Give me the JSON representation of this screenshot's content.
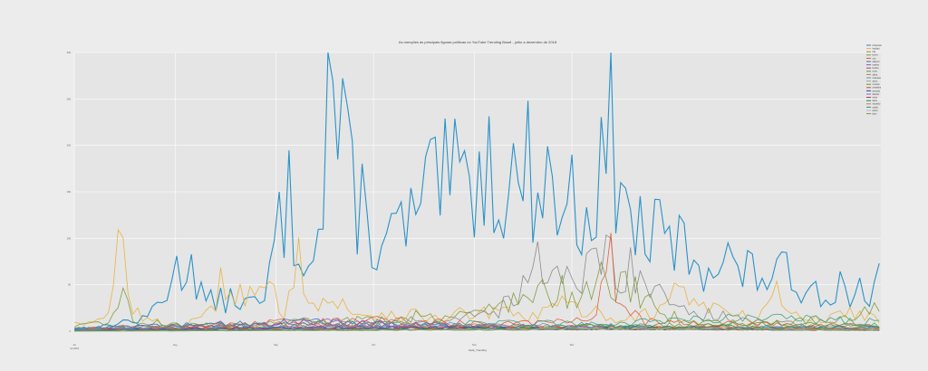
{
  "chart_data": {
    "type": "line",
    "title": "As menções às principais figuras políticas no YouTube Trending Brazil - julho a dezembro de 2018",
    "xlabel": "Data_Trending",
    "ylabel": "",
    "ylim": [
      0,
      300
    ],
    "yticks": [
      0,
      50,
      100,
      150,
      200,
      250,
      300
    ],
    "xticks": [
      {
        "date": "2018-07-01",
        "label": "Jul"
      },
      {
        "date": "2018-08-01",
        "label": "Aug"
      },
      {
        "date": "2018-09-01",
        "label": "Sep"
      },
      {
        "date": "2018-10-01",
        "label": "Oct"
      },
      {
        "date": "2018-11-01",
        "label": "Nov"
      },
      {
        "date": "2018-12-01",
        "label": "Dec"
      }
    ],
    "x_start_label": "Jul 2018",
    "grid": true,
    "legend_position": "top-right",
    "series": [
      {
        "name": "bolsonaro",
        "color": "#1f8ec6",
        "anchors": [
          [
            0,
            3
          ],
          [
            8,
            4
          ],
          [
            14,
            10
          ],
          [
            22,
            12
          ],
          [
            30,
            55
          ],
          [
            36,
            80
          ],
          [
            40,
            30
          ],
          [
            50,
            35
          ],
          [
            58,
            25
          ],
          [
            64,
            130
          ],
          [
            66,
            140
          ],
          [
            68,
            90
          ],
          [
            72,
            100
          ],
          [
            74,
            120
          ],
          [
            76,
            75
          ],
          [
            78,
            290
          ],
          [
            80,
            230
          ],
          [
            84,
            170
          ],
          [
            88,
            140
          ],
          [
            92,
            100
          ],
          [
            96,
            90
          ],
          [
            100,
            110
          ],
          [
            105,
            120
          ],
          [
            110,
            150
          ],
          [
            115,
            160
          ],
          [
            120,
            155
          ],
          [
            125,
            180
          ],
          [
            130,
            170
          ],
          [
            135,
            160
          ],
          [
            140,
            175
          ],
          [
            145,
            160
          ],
          [
            150,
            140
          ],
          [
            155,
            135
          ],
          [
            160,
            140
          ],
          [
            163,
            180
          ],
          [
            165,
            220
          ],
          [
            167,
            170
          ],
          [
            170,
            120
          ],
          [
            175,
            105
          ],
          [
            180,
            100
          ],
          [
            185,
            95
          ],
          [
            190,
            80
          ],
          [
            195,
            75
          ],
          [
            200,
            78
          ],
          [
            205,
            65
          ],
          [
            210,
            60
          ],
          [
            215,
            62
          ],
          [
            220,
            58
          ],
          [
            225,
            50
          ],
          [
            230,
            45
          ],
          [
            235,
            48
          ],
          [
            240,
            40
          ],
          [
            242,
            55
          ],
          [
            245,
            30
          ],
          [
            248,
            58
          ]
        ]
      },
      {
        "name": "haddad",
        "color": "#e8b13a",
        "anchors": [
          [
            0,
            12
          ],
          [
            5,
            8
          ],
          [
            10,
            12
          ],
          [
            14,
            90
          ],
          [
            16,
            80
          ],
          [
            18,
            30
          ],
          [
            22,
            12
          ],
          [
            30,
            6
          ],
          [
            40,
            12
          ],
          [
            46,
            55
          ],
          [
            50,
            45
          ],
          [
            55,
            35
          ],
          [
            60,
            42
          ],
          [
            65,
            20
          ],
          [
            68,
            88
          ],
          [
            70,
            75
          ],
          [
            74,
            25
          ],
          [
            80,
            35
          ],
          [
            86,
            15
          ],
          [
            90,
            20
          ],
          [
            100,
            18
          ],
          [
            110,
            15
          ],
          [
            120,
            18
          ],
          [
            130,
            20
          ],
          [
            140,
            15
          ],
          [
            150,
            28
          ],
          [
            160,
            20
          ],
          [
            170,
            12
          ],
          [
            175,
            20
          ],
          [
            180,
            22
          ],
          [
            185,
            45
          ],
          [
            190,
            35
          ],
          [
            200,
            20
          ],
          [
            210,
            12
          ],
          [
            215,
            48
          ],
          [
            220,
            18
          ],
          [
            230,
            12
          ],
          [
            240,
            22
          ],
          [
            248,
            16
          ]
        ]
      },
      {
        "name": "lula",
        "color": "#888888",
        "anchors": [
          [
            0,
            2
          ],
          [
            40,
            4
          ],
          [
            80,
            6
          ],
          [
            90,
            8
          ],
          [
            100,
            10
          ],
          [
            120,
            15
          ],
          [
            130,
            20
          ],
          [
            138,
            60
          ],
          [
            142,
            70
          ],
          [
            146,
            45
          ],
          [
            150,
            55
          ],
          [
            155,
            50
          ],
          [
            160,
            75
          ],
          [
            165,
            80
          ],
          [
            170,
            60
          ],
          [
            175,
            75
          ],
          [
            180,
            45
          ],
          [
            190,
            20
          ],
          [
            200,
            15
          ],
          [
            210,
            10
          ],
          [
            220,
            8
          ],
          [
            230,
            6
          ],
          [
            248,
            5
          ]
        ]
      },
      {
        "name": "temer",
        "color": "#7d9a3a",
        "anchors": [
          [
            0,
            5
          ],
          [
            10,
            8
          ],
          [
            14,
            48
          ],
          [
            18,
            10
          ],
          [
            30,
            8
          ],
          [
            50,
            6
          ],
          [
            70,
            10
          ],
          [
            90,
            12
          ],
          [
            110,
            18
          ],
          [
            125,
            20
          ],
          [
            135,
            35
          ],
          [
            145,
            40
          ],
          [
            155,
            45
          ],
          [
            160,
            55
          ],
          [
            170,
            48
          ],
          [
            180,
            20
          ],
          [
            190,
            10
          ],
          [
            210,
            8
          ],
          [
            230,
            12
          ],
          [
            240,
            16
          ],
          [
            248,
            30
          ]
        ]
      },
      {
        "name": "ciro",
        "color": "#e05a3a",
        "anchors": [
          [
            0,
            3
          ],
          [
            20,
            6
          ],
          [
            50,
            8
          ],
          [
            80,
            10
          ],
          [
            100,
            12
          ],
          [
            120,
            8
          ],
          [
            140,
            10
          ],
          [
            160,
            14
          ],
          [
            165,
            100
          ],
          [
            167,
            30
          ],
          [
            175,
            10
          ],
          [
            200,
            8
          ],
          [
            230,
            6
          ],
          [
            248,
            6
          ]
        ]
      },
      {
        "name": "alckmin",
        "color": "#3a6fc1",
        "anchors": [
          [
            0,
            3
          ],
          [
            20,
            5
          ],
          [
            40,
            7
          ],
          [
            60,
            9
          ],
          [
            80,
            10
          ],
          [
            100,
            8
          ],
          [
            120,
            6
          ],
          [
            140,
            5
          ],
          [
            160,
            6
          ],
          [
            180,
            5
          ],
          [
            200,
            4
          ],
          [
            248,
            3
          ]
        ]
      },
      {
        "name": "marina",
        "color": "#8a5fb0",
        "anchors": [
          [
            0,
            2
          ],
          [
            20,
            4
          ],
          [
            40,
            6
          ],
          [
            60,
            8
          ],
          [
            80,
            10
          ],
          [
            100,
            6
          ],
          [
            120,
            5
          ],
          [
            140,
            4
          ],
          [
            160,
            4
          ],
          [
            200,
            3
          ],
          [
            248,
            2
          ]
        ]
      },
      {
        "name": "boulos",
        "color": "#c23a6a",
        "anchors": [
          [
            0,
            2
          ],
          [
            30,
            4
          ],
          [
            60,
            6
          ],
          [
            90,
            8
          ],
          [
            120,
            6
          ],
          [
            150,
            5
          ],
          [
            180,
            4
          ],
          [
            210,
            3
          ],
          [
            248,
            2
          ]
        ]
      },
      {
        "name": "moro",
        "color": "#3aa07a",
        "anchors": [
          [
            0,
            3
          ],
          [
            30,
            5
          ],
          [
            60,
            7
          ],
          [
            90,
            8
          ],
          [
            120,
            9
          ],
          [
            150,
            8
          ],
          [
            180,
            10
          ],
          [
            210,
            14
          ],
          [
            230,
            12
          ],
          [
            248,
            10
          ]
        ]
      },
      {
        "name": "dilma",
        "color": "#d07a2a",
        "anchors": [
          [
            0,
            2
          ],
          [
            40,
            4
          ],
          [
            80,
            5
          ],
          [
            120,
            6
          ],
          [
            160,
            5
          ],
          [
            200,
            4
          ],
          [
            248,
            3
          ]
        ]
      },
      {
        "name": "manuela",
        "color": "#4a9ad0",
        "anchors": [
          [
            0,
            2
          ],
          [
            40,
            3
          ],
          [
            80,
            5
          ],
          [
            110,
            7
          ],
          [
            140,
            6
          ],
          [
            180,
            4
          ],
          [
            248,
            3
          ]
        ]
      },
      {
        "name": "aecio",
        "color": "#a0a0a0",
        "anchors": [
          [
            0,
            1
          ],
          [
            60,
            3
          ],
          [
            120,
            4
          ],
          [
            180,
            3
          ],
          [
            248,
            2
          ]
        ]
      },
      {
        "name": "mourao",
        "color": "#5aa030",
        "anchors": [
          [
            0,
            1
          ],
          [
            60,
            2
          ],
          [
            120,
            4
          ],
          [
            180,
            6
          ],
          [
            210,
            8
          ],
          [
            248,
            6
          ]
        ]
      },
      {
        "name": "meirelles",
        "color": "#d04040",
        "anchors": [
          [
            0,
            1
          ],
          [
            50,
            3
          ],
          [
            100,
            4
          ],
          [
            150,
            3
          ],
          [
            200,
            2
          ],
          [
            248,
            1
          ]
        ]
      },
      {
        "name": "amoedo",
        "color": "#2050a0",
        "anchors": [
          [
            0,
            1
          ],
          [
            50,
            3
          ],
          [
            100,
            4
          ],
          [
            150,
            3
          ],
          [
            200,
            2
          ],
          [
            248,
            1
          ]
        ]
      },
      {
        "name": "daciolo",
        "color": "#9a60c0",
        "anchors": [
          [
            0,
            1
          ],
          [
            60,
            2
          ],
          [
            90,
            6
          ],
          [
            110,
            3
          ],
          [
            200,
            2
          ],
          [
            248,
            1
          ]
        ]
      },
      {
        "name": "doria",
        "color": "#b03050",
        "anchors": [
          [
            0,
            1
          ],
          [
            60,
            2
          ],
          [
            120,
            3
          ],
          [
            180,
            2
          ],
          [
            248,
            1
          ]
        ]
      },
      {
        "name": "flavio",
        "color": "#1a8a60",
        "anchors": [
          [
            0,
            1
          ],
          [
            80,
            2
          ],
          [
            160,
            3
          ],
          [
            200,
            5
          ],
          [
            248,
            4
          ]
        ]
      },
      {
        "name": "eduardo",
        "color": "#c08030",
        "anchors": [
          [
            0,
            1
          ],
          [
            80,
            2
          ],
          [
            160,
            2
          ],
          [
            210,
            3
          ],
          [
            248,
            2
          ]
        ]
      },
      {
        "name": "carlos",
        "color": "#4080b0",
        "anchors": [
          [
            0,
            1
          ],
          [
            100,
            2
          ],
          [
            200,
            2
          ],
          [
            248,
            1
          ]
        ]
      },
      {
        "name": "witzel",
        "color": "#bbbbbb",
        "anchors": [
          [
            0,
            0
          ],
          [
            100,
            1
          ],
          [
            150,
            3
          ],
          [
            200,
            2
          ],
          [
            248,
            1
          ]
        ]
      },
      {
        "name": "joice",
        "color": "#70a040",
        "anchors": [
          [
            0,
            0
          ],
          [
            100,
            1
          ],
          [
            160,
            2
          ],
          [
            248,
            1
          ]
        ]
      }
    ]
  }
}
